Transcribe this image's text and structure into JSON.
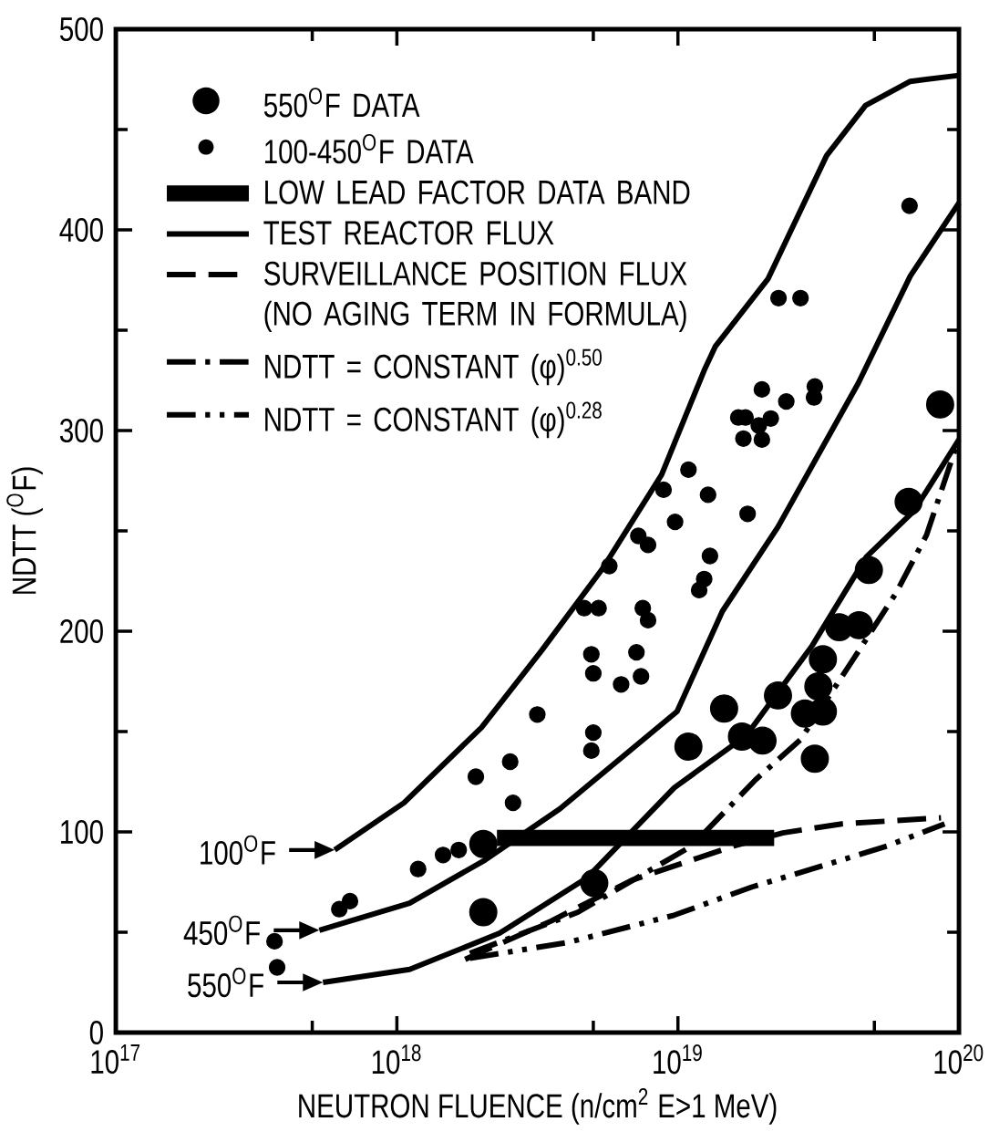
{
  "chart_data": {
    "type": "line",
    "xlabel": "NEUTRON FLUENCE (n/cm$^{2}$ E>1 MeV)",
    "ylabel": "NDTT ($^{O}$F)",
    "log": "x",
    "xlim": [
      1e+17,
      1e+20
    ],
    "xticks": [
      {
        "value": 1e+17,
        "label": "10$^{17}$"
      },
      {
        "value": 5e+17,
        "label": null
      },
      {
        "value": 1e+18,
        "label": "10$^{18}$"
      },
      {
        "value": 5e+18,
        "label": null
      },
      {
        "value": 1e+19,
        "label": "10$^{19}$"
      },
      {
        "value": 5e+19,
        "label": null
      },
      {
        "value": 1e+20,
        "label": "10$^{20}$"
      }
    ],
    "ylim": [
      0,
      500
    ],
    "yticks": [
      0,
      {
        "value": 50,
        "label": null
      },
      100,
      {
        "value": 150,
        "label": null
      },
      200,
      {
        "value": 250,
        "label": null
      },
      300,
      {
        "value": 350,
        "label": null
      },
      400,
      {
        "value": 450,
        "label": null
      },
      500
    ],
    "legend": "top left",
    "series": [
      {
        "name": "550$^{O}$F DATA",
        "type": "scatter",
        "marker": "circle",
        "color": "#000000",
        "x": [
          2.03e+18,
          2.03e+18,
          5.04e+18,
          1.09e+19,
          1.46e+19,
          1.69e+19,
          2e+19,
          2.27e+19,
          2.83e+19,
          3.28e+19,
          3.16e+19,
          3.28e+19,
          3.07e+19,
          3.75e+19,
          4.41e+19,
          4.78e+19,
          6.62e+19,
          8.57e+19
        ],
        "values": [
          94,
          60,
          74.5,
          142.5,
          161.5,
          147.5,
          145.5,
          168,
          159,
          160,
          172.5,
          186,
          136.5,
          202,
          203,
          230.5,
          264.5,
          313
        ]
      },
      {
        "name": "100-450$^{O}$F DATA",
        "type": "scatter",
        "marker": "circle",
        "color": "#000000",
        "x": [
          3.67e+17,
          3.75e+17,
          6.24e+17,
          6.81e+17,
          1.19e+18,
          1.46e+18,
          1.66e+18,
          1.91e+18,
          2.53e+18,
          2.59e+18,
          3.16e+18,
          4.92e+18,
          5e+18,
          5e+18,
          4.92e+18,
          4.64e+18,
          5.22e+18,
          5.7e+18,
          6.28e+18,
          7.12e+18,
          7.39e+18,
          7.5e+18,
          7.83e+18,
          7.23e+18,
          7.83e+18,
          9.77e+18,
          8.89e+18,
          1.09e+19,
          1.28e+19,
          1.3e+19,
          1.24e+19,
          1.19e+19,
          1.77e+19,
          2.28e+19,
          2.73e+19,
          1.99e+19,
          2.43e+19,
          3.07e+19,
          3.05e+19,
          1.64e+19,
          1.74e+19,
          1.94e+19,
          2.14e+19,
          1.71e+19,
          1.99e+19,
          6.67e+19
        ],
        "values": [
          45.5,
          32.5,
          61.5,
          65.5,
          81.5,
          88.5,
          91,
          127.5,
          135,
          114.5,
          158.5,
          140.5,
          149.5,
          179,
          188.5,
          211.5,
          211.5,
          232.5,
          173.5,
          189.5,
          177.5,
          211.5,
          205.5,
          247.5,
          243,
          254.5,
          270.5,
          280.5,
          268,
          237.5,
          226,
          220.5,
          258.5,
          366,
          366,
          320.5,
          314.5,
          322,
          316.5,
          306.5,
          306.5,
          302.5,
          306,
          296,
          295.5,
          412
        ]
      },
      {
        "name": "LOW LEAD FACTOR DATA BAND",
        "line_style": "solid",
        "color": "#000000",
        "x": [
          2.27e+18,
          2.2e+19
        ],
        "values": [
          97,
          97
        ]
      },
      {
        "name": "TEST REACTOR FLUX",
        "line_style": "solid",
        "color": "#000000",
        "x": [
          6.01e+17,
          1.06e+18,
          2e+18,
          3.28e+18,
          5.38e+18,
          8.75e+18,
          1.24e+19,
          1.36e+19,
          2.09e+19,
          3.38e+19,
          4.65e+19,
          6.71e+19,
          1e+20
        ],
        "values": [
          91,
          114.5,
          152,
          190.5,
          231,
          278,
          330,
          342,
          375.5,
          437,
          462,
          474,
          477
        ]
      },
      {
        "name": "SURVEILLANCE POSITION FLUX (NO AGING TERM IN FORMULA)",
        "line_style": "dashed",
        "color": "#000000",
        "x": [
          1.75e+18,
          3.53e+18,
          6.87e+18,
          1.58e+19,
          2.36e+19,
          3.83e+19,
          8.63e+19
        ],
        "values": [
          36.5,
          55.5,
          76,
          93,
          99.5,
          104,
          107
        ]
      },
      {
        "name": "NDTT = CONSTANT (φ)$^{0.50}$",
        "line_style": "dashdot",
        "color": "#000000",
        "x": [
          1.82e+18,
          4.41e+18,
          1.12e+19,
          1.89e+19,
          2.73e+19,
          4.25e+19,
          5.97e+19,
          7.67e+19,
          9.77e+19
        ],
        "values": [
          39.5,
          60,
          93,
          126,
          146,
          187,
          219,
          248,
          292
        ]
      },
      {
        "name": "NDTT = CONSTANT (φ)$^{0.28}$",
        "line_style": "dashdotdot",
        "color": "#000000",
        "x": [
          1.82e+18,
          4.09e+18,
          9.7e+18,
          1.83e+19,
          3.83e+19,
          5.55e+19,
          8.89e+19
        ],
        "values": [
          37,
          45,
          58.5,
          72.5,
          86,
          93,
          104
        ]
      },
      {
        "line_style": "solid",
        "color": "#000000",
        "x": [
          5.3e+17,
          1.11e+18,
          2.06e+18,
          3.8e+18,
          9.93e+18,
          1.44e+19,
          2.27e+19,
          4.38e+19,
          6.71e+19,
          1e+20
        ],
        "values": [
          51,
          64.5,
          86,
          111.5,
          160,
          210,
          252,
          323.5,
          377,
          413.5
        ]
      },
      {
        "line_style": "solid",
        "color": "#000000",
        "x": [
          5.46e+17,
          1.11e+18,
          2.32e+18,
          4.74e+18,
          9.7e+18,
          1.75e+19,
          3.01e+19,
          4.68e+19,
          6.92e+19,
          1e+20
        ],
        "values": [
          25,
          31.5,
          49.5,
          77,
          122,
          148,
          193,
          237,
          260,
          295.5
        ]
      }
    ],
    "annotations": [
      {
        "text": "100$^{O}$F",
        "x": 6.01e+17,
        "y": 91
      },
      {
        "text": "450$^{O}$F",
        "x": 5.3e+17,
        "y": 51
      },
      {
        "text": "550$^{O}$F",
        "x": 5.46e+17,
        "y": 25
      }
    ]
  }
}
